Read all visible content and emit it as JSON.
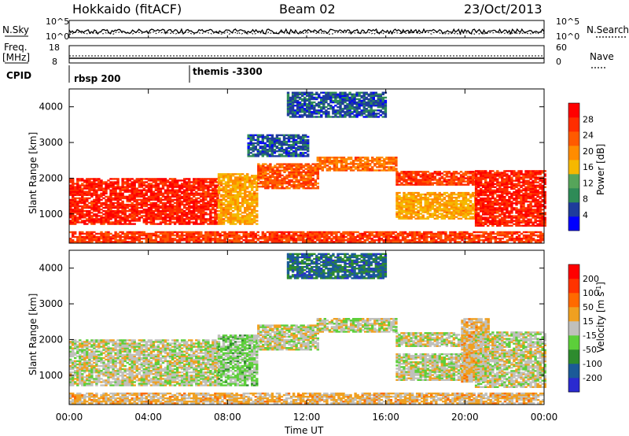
{
  "header": {
    "station": "Hokkaido (fitACF)",
    "beam": "Beam 02",
    "date": "23/Oct/2013"
  },
  "top_panels": {
    "nsky_label": "N.Sky",
    "nsky_ticks": [
      "10^5",
      "10^0"
    ],
    "nsearch_label": "N.Search",
    "freq_label": "Freq.",
    "freq_unit": "[MHz]",
    "freq_ticks": [
      "18",
      "8"
    ],
    "nave_label": "Nave",
    "nave_ticks": [
      "60",
      "0"
    ],
    "cpid_label": "CPID",
    "cpid_segments": [
      {
        "name": "rbsp 200",
        "start_hour": 0,
        "end_hour": 6
      },
      {
        "name": "themis -3300",
        "start_hour": 6,
        "end_hour": 24
      }
    ]
  },
  "colors": {
    "power_scale": [
      "#0000ff",
      "#1e3c9c",
      "#2e8b57",
      "#56a55a",
      "#f5b800",
      "#ff8c00",
      "#ff5a00",
      "#ff2d00",
      "#ff0000"
    ],
    "velocity_scale": [
      "#2a2ad0",
      "#1b5a98",
      "#2e8b2e",
      "#5ccf3a",
      "#c0c0bc",
      "#f0a020",
      "#ff6a00",
      "#ff3300",
      "#ff0000"
    ],
    "ground_scatter": "#c0c0bc"
  },
  "chart_data": [
    {
      "type": "heatmap",
      "name": "power",
      "ylabel": "Slant Range [km]",
      "yticks": [
        "4000",
        "3000",
        "2000",
        "1000"
      ],
      "ylim": [
        180,
        4500
      ],
      "colorbar_label": "Power [dB]",
      "colorbar_ticks": [
        "28",
        "24",
        "20",
        "16",
        "12",
        "8",
        "4"
      ],
      "crange": [
        0,
        32
      ],
      "xlim_hours": [
        0,
        24
      ],
      "bands": [
        {
          "t": [
            0,
            7.5
          ],
          "r": [
            700,
            2000
          ],
          "value": 28
        },
        {
          "t": [
            7.5,
            9.5
          ],
          "r": [
            700,
            2100
          ],
          "value": 18
        },
        {
          "t": [
            9.5,
            12.5
          ],
          "r": [
            1700,
            2400
          ],
          "value": 24
        },
        {
          "t": [
            12.5,
            16.5
          ],
          "r": [
            2200,
            2600
          ],
          "value": 22
        },
        {
          "t": [
            16.5,
            20.5
          ],
          "r": [
            1800,
            2200
          ],
          "value": 26
        },
        {
          "t": [
            16.5,
            20.5
          ],
          "r": [
            850,
            1600
          ],
          "value": 18
        },
        {
          "t": [
            20.5,
            24
          ],
          "r": [
            650,
            2200
          ],
          "value": 28
        },
        {
          "t": [
            0,
            24
          ],
          "r": [
            200,
            500
          ],
          "value": 26
        },
        {
          "t": [
            11,
            16
          ],
          "r": [
            3700,
            4400
          ],
          "value": 6
        },
        {
          "t": [
            9,
            12
          ],
          "r": [
            2600,
            3200
          ],
          "value": 6
        }
      ]
    },
    {
      "type": "heatmap",
      "name": "velocity",
      "ylabel": "Slant Range [km]",
      "yticks": [
        "4000",
        "3000",
        "2000",
        "1000"
      ],
      "ylim": [
        180,
        4500
      ],
      "colorbar_label": "Velocity [m s^-1]",
      "colorbar_ticks": [
        "200",
        "100",
        "50",
        "15",
        "-15",
        "-50",
        "-100",
        "-200"
      ],
      "crange": [
        -250,
        250
      ],
      "xlim_hours": [
        0,
        24
      ],
      "xticks": [
        "00:00",
        "04:00",
        "08:00",
        "12:00",
        "16:00",
        "20:00",
        "00:00"
      ],
      "xlabel": "Time UT",
      "bands": [
        {
          "t": [
            0,
            7.5
          ],
          "r": [
            700,
            2000
          ],
          "value": 0
        },
        {
          "t": [
            7.5,
            9.5
          ],
          "r": [
            700,
            2100
          ],
          "value": -40
        },
        {
          "t": [
            9.5,
            12.5
          ],
          "r": [
            1700,
            2400
          ],
          "value": 0
        },
        {
          "t": [
            12.5,
            16.5
          ],
          "r": [
            2200,
            2600
          ],
          "value": 0
        },
        {
          "t": [
            16.5,
            20.5
          ],
          "r": [
            1800,
            2200
          ],
          "value": 0
        },
        {
          "t": [
            16.5,
            20.5
          ],
          "r": [
            850,
            1600
          ],
          "value": 0
        },
        {
          "t": [
            19.8,
            21.2
          ],
          "r": [
            800,
            2600
          ],
          "value": 40
        },
        {
          "t": [
            20.5,
            24
          ],
          "r": [
            650,
            2200
          ],
          "value": 0
        },
        {
          "t": [
            0,
            24
          ],
          "r": [
            200,
            500
          ],
          "value": 40
        },
        {
          "t": [
            11,
            16
          ],
          "r": [
            3700,
            4400
          ],
          "value": -150
        }
      ]
    }
  ]
}
